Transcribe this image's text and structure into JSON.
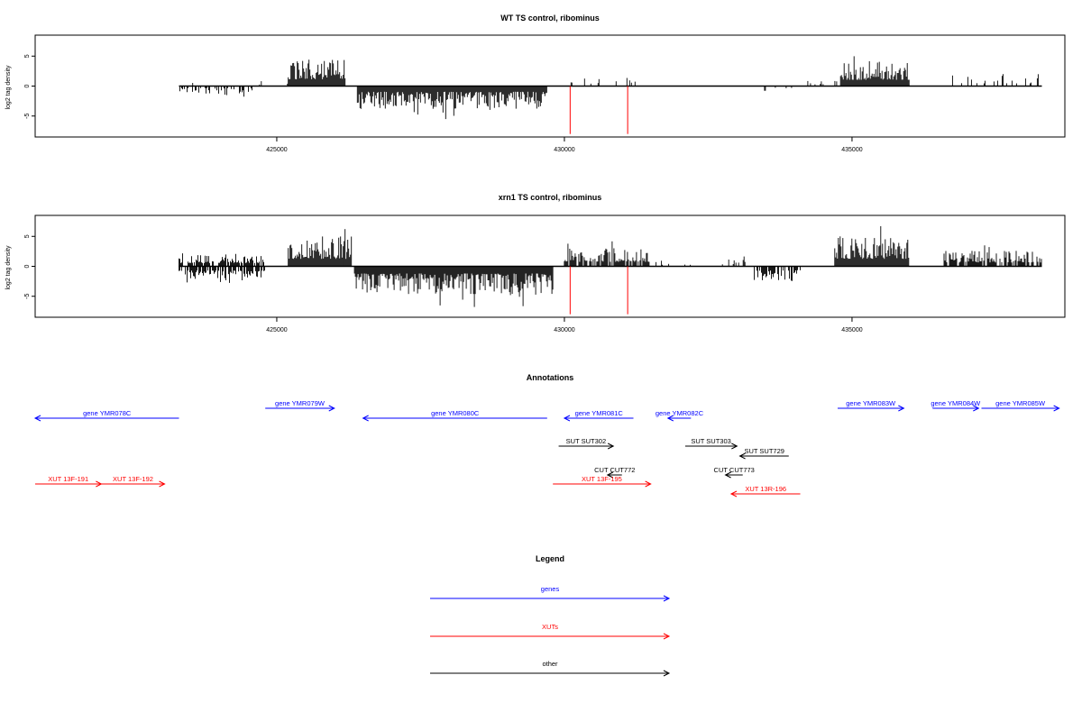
{
  "chart_data": [
    {
      "type": "bar",
      "title": "WT TS control, ribominus",
      "ylabel": "log2 tag density",
      "xlabel": "",
      "xlim": [
        420800,
        438700
      ],
      "ylim": [
        -8.5,
        8.5
      ],
      "x_ticks": [
        425000,
        430000,
        435000
      ],
      "x_tick_labels": [
        "425000",
        "430000",
        "435000"
      ],
      "y_ticks": [
        -5,
        0,
        5
      ],
      "y_tick_labels": [
        "-5",
        "0",
        "5"
      ],
      "baseline": {
        "from": 423300,
        "to": 438300
      },
      "red_markers": [
        430100,
        431100
      ],
      "red_marker_depth": -8,
      "segments": [
        {
          "from": 423300,
          "to": 424700,
          "sign": -1,
          "amp": 1.3,
          "density": 0.35
        },
        {
          "from": 423350,
          "to": 423550,
          "sign": 1,
          "amp": 1.3,
          "density": 0.4
        },
        {
          "from": 424700,
          "to": 425200,
          "sign": 1,
          "amp": 1.0,
          "density": 0.15
        },
        {
          "from": 425200,
          "to": 426200,
          "sign": 1,
          "amp": 4.5,
          "density": 1.0
        },
        {
          "from": 426400,
          "to": 429700,
          "sign": -1,
          "amp": 3.8,
          "density": 1.0
        },
        {
          "from": 430100,
          "to": 431300,
          "sign": 1,
          "amp": 1.6,
          "density": 0.18
        },
        {
          "from": 433400,
          "to": 434000,
          "sign": -1,
          "amp": 1.1,
          "density": 0.12
        },
        {
          "from": 434200,
          "to": 434800,
          "sign": 1,
          "amp": 1.0,
          "density": 0.2
        },
        {
          "from": 434800,
          "to": 436000,
          "sign": 1,
          "amp": 4.2,
          "density": 1.0
        },
        {
          "from": 436700,
          "to": 438300,
          "sign": 1,
          "amp": 1.8,
          "density": 0.2
        }
      ]
    },
    {
      "type": "bar",
      "title": "xrn1 TS control, ribominus",
      "ylabel": "log2 tag density",
      "xlabel": "",
      "xlim": [
        420800,
        438700
      ],
      "ylim": [
        -8.5,
        8.5
      ],
      "x_ticks": [
        425000,
        430000,
        435000
      ],
      "x_tick_labels": [
        "425000",
        "430000",
        "435000"
      ],
      "y_ticks": [
        -5,
        0,
        5
      ],
      "y_tick_labels": [
        "-5",
        "0",
        "5"
      ],
      "baseline": {
        "from": 423300,
        "to": 438300
      },
      "red_markers": [
        430100,
        431100
      ],
      "red_marker_depth": -8,
      "segments": [
        {
          "from": 423300,
          "to": 424800,
          "sign": 1,
          "amp": 2.2,
          "density": 0.7
        },
        {
          "from": 423300,
          "to": 424800,
          "sign": -1,
          "amp": 2.8,
          "density": 0.7
        },
        {
          "from": 425200,
          "to": 426300,
          "sign": 1,
          "amp": 5.0,
          "density": 1.0
        },
        {
          "from": 426350,
          "to": 429800,
          "sign": -1,
          "amp": 4.8,
          "density": 1.0
        },
        {
          "from": 430000,
          "to": 431500,
          "sign": 1,
          "amp": 3.0,
          "density": 0.8
        },
        {
          "from": 431500,
          "to": 432200,
          "sign": 1,
          "amp": 1.0,
          "density": 0.15
        },
        {
          "from": 432700,
          "to": 433300,
          "sign": 1,
          "amp": 1.2,
          "density": 0.2
        },
        {
          "from": 433300,
          "to": 434100,
          "sign": -1,
          "amp": 2.6,
          "density": 0.6
        },
        {
          "from": 434700,
          "to": 436000,
          "sign": 1,
          "amp": 5.0,
          "density": 1.0
        },
        {
          "from": 436600,
          "to": 438300,
          "sign": 1,
          "amp": 2.6,
          "density": 0.7
        }
      ]
    }
  ],
  "annotations": {
    "title": "Annotations",
    "features": [
      {
        "label": "gene YMR078C",
        "from": 423300,
        "to": 420800,
        "row": 1,
        "color": "#0000ff"
      },
      {
        "label": "gene YMR079W",
        "from": 424800,
        "to": 426000,
        "row": 0,
        "color": "#0000ff"
      },
      {
        "label": "gene YMR080C",
        "from": 429700,
        "to": 426500,
        "row": 1,
        "color": "#0000ff"
      },
      {
        "label": "gene YMR081C",
        "from": 431200,
        "to": 430000,
        "row": 1,
        "color": "#0000ff"
      },
      {
        "label": "gene YMR082C",
        "from": 432200,
        "to": 431800,
        "row": 1,
        "color": "#0000ff"
      },
      {
        "label": "gene YMR083W",
        "from": 434750,
        "to": 435900,
        "row": 0,
        "color": "#0000ff"
      },
      {
        "label": "gene YMR084W",
        "from": 436400,
        "to": 437200,
        "row": 0,
        "color": "#0000ff"
      },
      {
        "label": "gene YMR085W",
        "from": 437250,
        "to": 438600,
        "row": 0,
        "color": "#0000ff"
      },
      {
        "label": "SUT SUT302",
        "from": 429900,
        "to": 430850,
        "row": 2,
        "color": "#000000"
      },
      {
        "label": "SUT SUT303",
        "from": 432100,
        "to": 433000,
        "row": 2,
        "color": "#000000"
      },
      {
        "label": "SUT SUT729",
        "from": 433900,
        "to": 433050,
        "row": 3,
        "color": "#000000"
      },
      {
        "label": "CUT CUT772",
        "from": 431000,
        "to": 430750,
        "row": 4,
        "color": "#000000"
      },
      {
        "label": "CUT CUT773",
        "from": 433100,
        "to": 432800,
        "row": 4,
        "color": "#000000"
      },
      {
        "label": "XUT 13F-191",
        "from": 420800,
        "to": 421950,
        "row": 5,
        "color": "#ff0000"
      },
      {
        "label": "XUT 13F-192",
        "from": 421950,
        "to": 423050,
        "row": 5,
        "color": "#ff0000"
      },
      {
        "label": "XUT 13F-195",
        "from": 429800,
        "to": 431500,
        "row": 5,
        "color": "#ff0000"
      },
      {
        "label": "XUT 13R-196",
        "from": 434100,
        "to": 432900,
        "row": 6,
        "color": "#ff0000"
      }
    ]
  },
  "legend": {
    "title": "Legend",
    "items": [
      {
        "label": "genes",
        "color": "#0000ff"
      },
      {
        "label": "XUTs",
        "color": "#ff0000"
      },
      {
        "label": "other",
        "color": "#000000"
      }
    ]
  }
}
